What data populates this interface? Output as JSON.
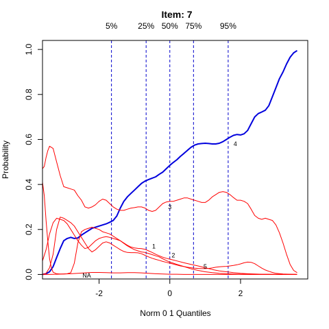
{
  "chart_data": {
    "type": "line",
    "title": "Item:  7",
    "xlabel": "Norm 0 1 Quantiles",
    "ylabel": "Probability",
    "xlim": [
      -3.6,
      3.9
    ],
    "ylim": [
      -0.02,
      1.04
    ],
    "x_ticks": [
      -2,
      0,
      2
    ],
    "y_ticks": [
      0.0,
      0.2,
      0.4,
      0.6,
      0.8,
      1.0
    ],
    "x_tick_labels": [
      "-2",
      "0",
      "2"
    ],
    "y_tick_labels": [
      "0.0",
      "0.2",
      "0.4",
      "0.6",
      "0.8",
      "1.0"
    ],
    "grid": false,
    "quantiles": [
      {
        "label": "5%",
        "x": -1.65
      },
      {
        "label": "25%",
        "x": -0.67
      },
      {
        "label": "50%",
        "x": 0.0
      },
      {
        "label": "75%",
        "x": 0.67
      },
      {
        "label": "95%",
        "x": 1.65
      }
    ],
    "quantile_color": "#0000cc",
    "series": [
      {
        "label": "4",
        "color": "#0000dd",
        "thick": true,
        "label_at": [
          1.85,
          0.58
        ],
        "x": [
          -3.6,
          -3.5,
          -3.4,
          -3.3,
          -3.2,
          -3.1,
          -3.0,
          -2.9,
          -2.8,
          -2.7,
          -2.6,
          -2.5,
          -2.4,
          -2.3,
          -2.2,
          -2.1,
          -2.0,
          -1.9,
          -1.8,
          -1.7,
          -1.6,
          -1.5,
          -1.4,
          -1.3,
          -1.2,
          -1.1,
          -1.0,
          -0.9,
          -0.8,
          -0.7,
          -0.6,
          -0.5,
          -0.4,
          -0.3,
          -0.2,
          -0.1,
          0.0,
          0.1,
          0.2,
          0.3,
          0.4,
          0.5,
          0.6,
          0.7,
          0.8,
          0.9,
          1.0,
          1.1,
          1.2,
          1.3,
          1.4,
          1.5,
          1.6,
          1.7,
          1.8,
          1.9,
          2.0,
          2.1,
          2.2,
          2.3,
          2.4,
          2.5,
          2.6,
          2.7,
          2.8,
          2.9,
          3.0,
          3.1,
          3.2,
          3.3,
          3.4,
          3.5,
          3.6
        ],
        "y": [
          0.0,
          0.003,
          0.012,
          0.035,
          0.075,
          0.115,
          0.15,
          0.16,
          0.165,
          0.16,
          0.162,
          0.175,
          0.185,
          0.195,
          0.205,
          0.21,
          0.215,
          0.22,
          0.225,
          0.232,
          0.24,
          0.26,
          0.295,
          0.325,
          0.345,
          0.36,
          0.375,
          0.39,
          0.405,
          0.415,
          0.422,
          0.428,
          0.434,
          0.445,
          0.455,
          0.47,
          0.485,
          0.498,
          0.51,
          0.525,
          0.538,
          0.552,
          0.565,
          0.575,
          0.58,
          0.582,
          0.583,
          0.582,
          0.58,
          0.58,
          0.583,
          0.59,
          0.6,
          0.61,
          0.618,
          0.622,
          0.62,
          0.625,
          0.64,
          0.67,
          0.7,
          0.715,
          0.722,
          0.73,
          0.75,
          0.79,
          0.83,
          0.87,
          0.9,
          0.935,
          0.965,
          0.985,
          0.995
        ]
      },
      {
        "label": "3",
        "color": "#ff0000",
        "thick": false,
        "label_at": [
          0.0,
          0.3
        ],
        "x": [
          -3.6,
          -3.55,
          -3.5,
          -3.45,
          -3.4,
          -3.3,
          -3.2,
          -3.1,
          -3.0,
          -2.9,
          -2.8,
          -2.7,
          -2.6,
          -2.5,
          -2.4,
          -2.3,
          -2.2,
          -2.1,
          -2.0,
          -1.9,
          -1.8,
          -1.7,
          -1.6,
          -1.5,
          -1.4,
          -1.3,
          -1.2,
          -1.1,
          -1.0,
          -0.9,
          -0.8,
          -0.7,
          -0.6,
          -0.5,
          -0.4,
          -0.3,
          -0.2,
          -0.1,
          0.0,
          0.1,
          0.2,
          0.3,
          0.4,
          0.5,
          0.6,
          0.7,
          0.8,
          0.9,
          1.0,
          1.1,
          1.2,
          1.3,
          1.4,
          1.5,
          1.6,
          1.7,
          1.8,
          1.9,
          2.0,
          2.1,
          2.2,
          2.3,
          2.4,
          2.5,
          2.6,
          2.7,
          2.8,
          2.9,
          3.0,
          3.1,
          3.2,
          3.3,
          3.4,
          3.5,
          3.6
        ],
        "y": [
          0.47,
          0.48,
          0.52,
          0.55,
          0.57,
          0.56,
          0.5,
          0.44,
          0.39,
          0.385,
          0.38,
          0.375,
          0.35,
          0.33,
          0.3,
          0.295,
          0.3,
          0.31,
          0.325,
          0.335,
          0.33,
          0.315,
          0.3,
          0.29,
          0.285,
          0.285,
          0.29,
          0.295,
          0.297,
          0.3,
          0.3,
          0.295,
          0.285,
          0.28,
          0.285,
          0.3,
          0.315,
          0.322,
          0.325,
          0.325,
          0.33,
          0.335,
          0.34,
          0.34,
          0.335,
          0.33,
          0.325,
          0.32,
          0.32,
          0.33,
          0.345,
          0.355,
          0.365,
          0.368,
          0.365,
          0.355,
          0.342,
          0.33,
          0.33,
          0.325,
          0.315,
          0.29,
          0.262,
          0.25,
          0.245,
          0.25,
          0.245,
          0.24,
          0.22,
          0.185,
          0.14,
          0.09,
          0.045,
          0.018,
          0.008
        ]
      },
      {
        "label": "1",
        "color": "#ff0000",
        "thick": false,
        "label_at": [
          -0.45,
          0.125
        ],
        "x": [
          -3.6,
          -3.55,
          -3.5,
          -3.45,
          -3.4,
          -3.35,
          -3.3,
          -3.2,
          -3.1,
          -3.0,
          -2.9,
          -2.8,
          -2.7,
          -2.6,
          -2.5,
          -2.4,
          -2.3,
          -2.2,
          -2.1,
          -2.0,
          -1.9,
          -1.8,
          -1.7,
          -1.6,
          -1.5,
          -1.4,
          -1.3,
          -1.2,
          -1.1,
          -1.0,
          -0.9,
          -0.8,
          -0.7,
          -0.6,
          -0.5,
          -0.4,
          -0.3,
          -0.2,
          -0.1,
          0.0,
          0.2,
          0.4,
          0.6,
          0.8,
          1.0,
          1.2,
          1.4,
          1.6,
          1.8,
          2.0,
          2.2,
          2.4,
          2.6,
          2.8,
          3.0,
          3.2,
          3.4,
          3.6
        ],
        "y": [
          0.41,
          0.35,
          0.24,
          0.15,
          0.07,
          0.03,
          0.01,
          0.003,
          0.002,
          0.002,
          0.003,
          0.008,
          0.05,
          0.14,
          0.19,
          0.2,
          0.205,
          0.21,
          0.205,
          0.2,
          0.19,
          0.185,
          0.18,
          0.17,
          0.16,
          0.15,
          0.138,
          0.127,
          0.118,
          0.11,
          0.105,
          0.1,
          0.098,
          0.093,
          0.088,
          0.083,
          0.078,
          0.07,
          0.062,
          0.055,
          0.045,
          0.035,
          0.025,
          0.018,
          0.012,
          0.008,
          0.005,
          0.003,
          0.002,
          0.001,
          0.001,
          0.0,
          0.0,
          0.0,
          0.0,
          0.0,
          0.0,
          0.0
        ]
      },
      {
        "label": "2",
        "color": "#ff0000",
        "thick": false,
        "label_at": [
          0.1,
          0.085
        ],
        "x": [
          -3.6,
          -3.5,
          -3.4,
          -3.3,
          -3.2,
          -3.1,
          -3.0,
          -2.9,
          -2.8,
          -2.7,
          -2.6,
          -2.5,
          -2.4,
          -2.3,
          -2.2,
          -2.1,
          -2.0,
          -1.9,
          -1.8,
          -1.7,
          -1.6,
          -1.5,
          -1.4,
          -1.3,
          -1.2,
          -1.1,
          -1.0,
          -0.9,
          -0.8,
          -0.7,
          -0.6,
          -0.5,
          -0.4,
          -0.3,
          -0.2,
          -0.1,
          0.0,
          0.2,
          0.4,
          0.6,
          0.8,
          1.0,
          1.2,
          1.4,
          1.6,
          1.8,
          2.0,
          2.2,
          2.4,
          2.6,
          2.8,
          3.0,
          3.2,
          3.4,
          3.6
        ],
        "y": [
          0.06,
          0.11,
          0.18,
          0.23,
          0.25,
          0.245,
          0.24,
          0.225,
          0.2,
          0.175,
          0.15,
          0.13,
          0.115,
          0.12,
          0.135,
          0.15,
          0.16,
          0.165,
          0.168,
          0.165,
          0.16,
          0.155,
          0.15,
          0.14,
          0.13,
          0.122,
          0.118,
          0.116,
          0.115,
          0.112,
          0.105,
          0.098,
          0.09,
          0.083,
          0.077,
          0.072,
          0.068,
          0.06,
          0.052,
          0.045,
          0.038,
          0.03,
          0.022,
          0.016,
          0.012,
          0.008,
          0.005,
          0.003,
          0.002,
          0.001,
          0.001,
          0.0,
          0.0,
          0.0,
          0.0
        ]
      },
      {
        "label": "5",
        "color": "#ff0000",
        "thick": false,
        "label_at": [
          1.0,
          0.035
        ],
        "x": [
          -3.6,
          -3.5,
          -3.4,
          -3.3,
          -3.2,
          -3.1,
          -3.0,
          -2.9,
          -2.8,
          -2.7,
          -2.6,
          -2.5,
          -2.4,
          -2.3,
          -2.2,
          -2.1,
          -2.0,
          -1.9,
          -1.8,
          -1.7,
          -1.6,
          -1.5,
          -1.4,
          -1.3,
          -1.2,
          -1.1,
          -1.0,
          -0.9,
          -0.8,
          -0.7,
          -0.6,
          -0.5,
          -0.4,
          -0.3,
          -0.2,
          -0.1,
          0.0,
          0.1,
          0.2,
          0.3,
          0.4,
          0.5,
          0.6,
          0.7,
          0.8,
          0.9,
          1.0,
          1.1,
          1.2,
          1.3,
          1.4,
          1.5,
          1.6,
          1.7,
          1.8,
          1.9,
          2.0,
          2.1,
          2.2,
          2.3,
          2.4,
          2.5,
          2.6,
          2.7,
          2.8,
          2.9,
          3.0,
          3.2,
          3.4,
          3.6
        ],
        "y": [
          0.0,
          0.005,
          0.03,
          0.09,
          0.2,
          0.255,
          0.25,
          0.24,
          0.23,
          0.215,
          0.19,
          0.165,
          0.14,
          0.115,
          0.1,
          0.11,
          0.125,
          0.14,
          0.145,
          0.14,
          0.13,
          0.12,
          0.11,
          0.102,
          0.098,
          0.097,
          0.097,
          0.096,
          0.092,
          0.085,
          0.078,
          0.072,
          0.067,
          0.063,
          0.058,
          0.054,
          0.05,
          0.046,
          0.042,
          0.038,
          0.035,
          0.032,
          0.03,
          0.028,
          0.027,
          0.026,
          0.026,
          0.027,
          0.029,
          0.032,
          0.034,
          0.035,
          0.036,
          0.038,
          0.04,
          0.043,
          0.047,
          0.052,
          0.055,
          0.054,
          0.048,
          0.038,
          0.028,
          0.02,
          0.014,
          0.009,
          0.005,
          0.002,
          0.001,
          0.0
        ]
      },
      {
        "label": "NA",
        "color": "#ff0000",
        "thick": false,
        "label_at": [
          -2.35,
          -0.005
        ],
        "x": [
          -3.6,
          -3.4,
          -3.2,
          -3.0,
          -2.8,
          -2.6,
          -2.4,
          -2.2,
          -2.0,
          -1.8,
          -1.6,
          -1.4,
          -1.2,
          -1.0,
          -0.8,
          -0.6,
          -0.4,
          -0.2,
          0.0,
          0.2,
          0.4,
          0.6,
          0.8,
          1.0,
          1.2,
          1.4,
          1.6,
          1.8,
          2.0,
          2.2,
          2.4,
          2.6,
          2.8,
          3.0,
          3.2,
          3.4,
          3.6
        ],
        "y": [
          0.0,
          0.0,
          0.001,
          0.002,
          0.003,
          0.005,
          0.007,
          0.009,
          0.009,
          0.008,
          0.007,
          0.007,
          0.008,
          0.008,
          0.007,
          0.005,
          0.003,
          0.002,
          0.001,
          0.001,
          0.0,
          0.0,
          0.0,
          0.0,
          0.0,
          0.0,
          0.0,
          0.0,
          0.0,
          0.0,
          0.0,
          0.0,
          0.0,
          0.0,
          0.0,
          0.0,
          0.0
        ]
      }
    ]
  }
}
